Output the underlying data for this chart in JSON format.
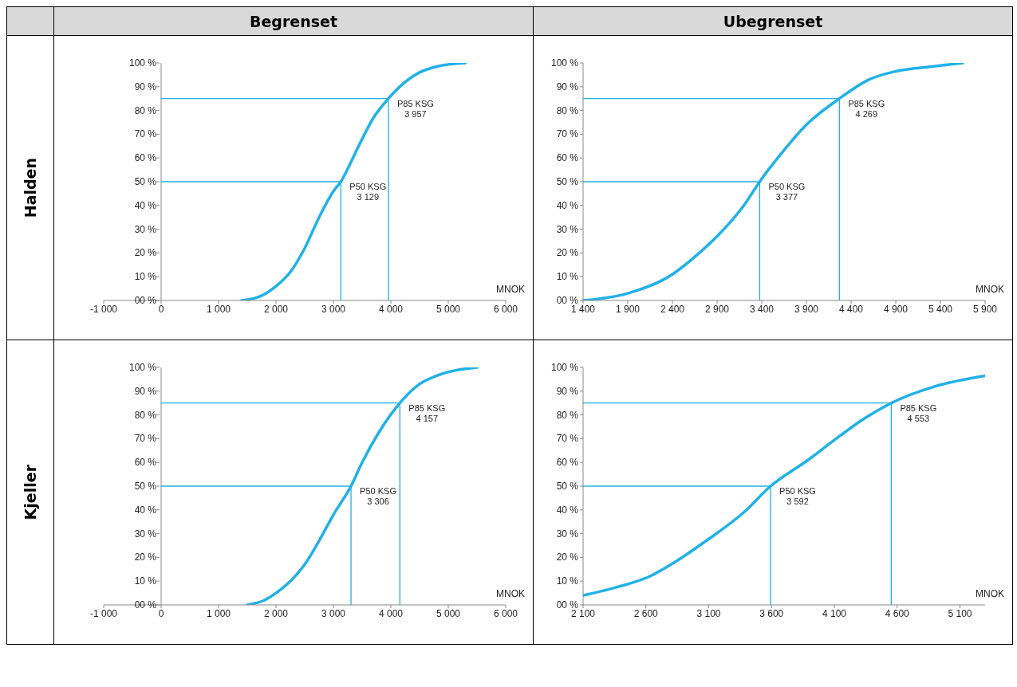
{
  "chart_data": [
    {
      "type": "line",
      "title": "Begrenset",
      "ylabel": "Halden",
      "xlabel": "MNOK",
      "xlim": [
        -1000,
        6000
      ],
      "xticks": [
        {
          "value": -1000,
          "label": "-1 000"
        },
        0,
        {
          "value": 1000,
          "label": "1 000"
        },
        {
          "value": 2000,
          "label": "2 000"
        },
        {
          "value": 3000,
          "label": "3 000"
        },
        {
          "value": 4000,
          "label": "4 000"
        },
        {
          "value": 5000,
          "label": "5 000"
        },
        {
          "value": 6000,
          "label": "6 000"
        }
      ],
      "ylim": [
        0,
        100
      ],
      "yticks": [
        {
          "value": 0,
          "label": "00 %"
        },
        {
          "value": 10,
          "label": "10 %"
        },
        {
          "value": 20,
          "label": "20 %"
        },
        {
          "value": 30,
          "label": "30 %"
        },
        {
          "value": 40,
          "label": "40 %"
        },
        {
          "value": 50,
          "label": "50 %"
        },
        {
          "value": 60,
          "label": "60 %"
        },
        {
          "value": 70,
          "label": "70 %"
        },
        {
          "value": 80,
          "label": "80 %"
        },
        {
          "value": 90,
          "label": "90 %"
        },
        {
          "value": 100,
          "label": "100 %"
        }
      ],
      "grid": false,
      "marker": "none",
      "series": [
        {
          "color": "#1fb1e9",
          "x": [
            1400,
            1750,
            2000,
            2250,
            2500,
            2750,
            3000,
            3129,
            3300,
            3500,
            3700,
            3957,
            4200,
            4500,
            4800,
            5300
          ],
          "values": [
            0,
            2,
            6,
            12,
            22,
            35,
            46,
            50,
            58,
            68,
            77,
            85,
            91,
            96,
            98.5,
            100
          ]
        },
        {
          "color": "#1fb1e9",
          "x": [
            0,
            3957,
            3957
          ],
          "values": [
            85,
            85,
            0
          ]
        },
        {
          "color": "#1fb1e9",
          "x": [
            0,
            3129,
            3129
          ],
          "values": [
            50,
            50,
            0
          ]
        }
      ],
      "annotations": [
        {
          "text": "P85 KSG\n3 957",
          "x": 3957,
          "y": 85
        },
        {
          "text": "P50 KSG\n3 129",
          "x": 3129,
          "y": 50
        }
      ]
    },
    {
      "type": "line",
      "title": "Ubegrenset",
      "xlabel": "MNOK",
      "xlim": [
        1400,
        5900
      ],
      "xticks": [
        {
          "value": 1400,
          "label": "1 400"
        },
        {
          "value": 1900,
          "label": "1 900"
        },
        {
          "value": 2400,
          "label": "2 400"
        },
        {
          "value": 2900,
          "label": "2 900"
        },
        {
          "value": 3400,
          "label": "3 400"
        },
        {
          "value": 3900,
          "label": "3 900"
        },
        {
          "value": 4400,
          "label": "4 400"
        },
        {
          "value": 4900,
          "label": "4 900"
        },
        {
          "value": 5400,
          "label": "5 400"
        },
        {
          "value": 5900,
          "label": "5 900"
        }
      ],
      "ylim": [
        0,
        100
      ],
      "yticks": [
        {
          "value": 0,
          "label": "00 %"
        },
        {
          "value": 10,
          "label": "10 %"
        },
        {
          "value": 20,
          "label": "20 %"
        },
        {
          "value": 30,
          "label": "30 %"
        },
        {
          "value": 40,
          "label": "40 %"
        },
        {
          "value": 50,
          "label": "50 %"
        },
        {
          "value": 60,
          "label": "60 %"
        },
        {
          "value": 70,
          "label": "70 %"
        },
        {
          "value": 80,
          "label": "80 %"
        },
        {
          "value": 90,
          "label": "90 %"
        },
        {
          "value": 100,
          "label": "100 %"
        }
      ],
      "grid": false,
      "marker": "none",
      "series": [
        {
          "color": "#1fb1e9",
          "x": [
            1400,
            1900,
            2400,
            2700,
            2900,
            3200,
            3377,
            3600,
            3900,
            4269,
            4600,
            4900,
            5300,
            5650
          ],
          "values": [
            0,
            3,
            11,
            20,
            27,
            40,
            50,
            61,
            74,
            85,
            93,
            96.5,
            98.5,
            100
          ]
        },
        {
          "color": "#1fb1e9",
          "x": [
            1400,
            4269,
            4269
          ],
          "values": [
            85,
            85,
            0
          ]
        },
        {
          "color": "#1fb1e9",
          "x": [
            1400,
            3377,
            3377
          ],
          "values": [
            50,
            50,
            0
          ]
        }
      ],
      "annotations": [
        {
          "text": "P85 KSG\n4 269",
          "x": 4269,
          "y": 85
        },
        {
          "text": "P50 KSG\n3 377",
          "x": 3377,
          "y": 50
        }
      ]
    },
    {
      "type": "line",
      "ylabel": "Kjeller",
      "xlabel": "MNOK",
      "xlim": [
        -1000,
        6000
      ],
      "xticks": [
        {
          "value": -1000,
          "label": "-1 000"
        },
        0,
        {
          "value": 1000,
          "label": "1 000"
        },
        {
          "value": 2000,
          "label": "2 000"
        },
        {
          "value": 3000,
          "label": "3 000"
        },
        {
          "value": 4000,
          "label": "4 000"
        },
        {
          "value": 5000,
          "label": "5 000"
        },
        {
          "value": 6000,
          "label": "6 000"
        }
      ],
      "ylim": [
        0,
        100
      ],
      "yticks": [
        {
          "value": 0,
          "label": "00 %"
        },
        {
          "value": 10,
          "label": "10 %"
        },
        {
          "value": 20,
          "label": "20 %"
        },
        {
          "value": 30,
          "label": "30 %"
        },
        {
          "value": 40,
          "label": "40 %"
        },
        {
          "value": 50,
          "label": "50 %"
        },
        {
          "value": 60,
          "label": "60 %"
        },
        {
          "value": 70,
          "label": "70 %"
        },
        {
          "value": 80,
          "label": "80 %"
        },
        {
          "value": 90,
          "label": "90 %"
        },
        {
          "value": 100,
          "label": "100 %"
        }
      ],
      "grid": false,
      "marker": "none",
      "series": [
        {
          "color": "#1fb1e9",
          "x": [
            1500,
            1800,
            2000,
            2250,
            2500,
            2750,
            3000,
            3306,
            3500,
            3800,
            4157,
            4500,
            4800,
            5500
          ],
          "values": [
            0,
            2,
            5,
            10,
            17,
            27,
            38,
            50,
            60,
            73,
            85,
            93,
            96.5,
            100
          ]
        },
        {
          "color": "#1fb1e9",
          "x": [
            0,
            4157,
            4157
          ],
          "values": [
            85,
            85,
            0
          ]
        },
        {
          "color": "#1fb1e9",
          "x": [
            0,
            3306,
            3306
          ],
          "values": [
            50,
            50,
            0
          ]
        }
      ],
      "annotations": [
        {
          "text": "P85 KSG\n4 157",
          "x": 4157,
          "y": 85
        },
        {
          "text": "P50 KSG\n3 306",
          "x": 3306,
          "y": 50
        }
      ]
    },
    {
      "type": "line",
      "xlabel": "MNOK",
      "xlim": [
        2100,
        5300
      ],
      "xticks": [
        {
          "value": 2100,
          "label": "2 100"
        },
        {
          "value": 2600,
          "label": "2 600"
        },
        {
          "value": 3100,
          "label": "3 100"
        },
        {
          "value": 3600,
          "label": "3 600"
        },
        {
          "value": 4100,
          "label": "4 100"
        },
        {
          "value": 4600,
          "label": "4 600"
        },
        {
          "value": 5100,
          "label": "5 100"
        }
      ],
      "ylim": [
        0,
        100
      ],
      "yticks": [
        {
          "value": 0,
          "label": "00 %"
        },
        {
          "value": 10,
          "label": "10 %"
        },
        {
          "value": 20,
          "label": "20 %"
        },
        {
          "value": 30,
          "label": "30 %"
        },
        {
          "value": 40,
          "label": "40 %"
        },
        {
          "value": 50,
          "label": "50 %"
        },
        {
          "value": 60,
          "label": "60 %"
        },
        {
          "value": 70,
          "label": "70 %"
        },
        {
          "value": 80,
          "label": "80 %"
        },
        {
          "value": 90,
          "label": "90 %"
        },
        {
          "value": 100,
          "label": "100 %"
        }
      ],
      "grid": false,
      "marker": "none",
      "series": [
        {
          "color": "#1fb1e9",
          "x": [
            2100,
            2370,
            2630,
            2830,
            3080,
            3380,
            3592,
            3890,
            4140,
            4340,
            4553,
            4900,
            5300
          ],
          "values": [
            4,
            7.5,
            12,
            18,
            27,
            39,
            50,
            61,
            71,
            78.5,
            85,
            92,
            96.5
          ]
        },
        {
          "color": "#1fb1e9",
          "x": [
            2100,
            4553,
            4553
          ],
          "values": [
            85,
            85,
            0
          ]
        },
        {
          "color": "#1fb1e9",
          "x": [
            2100,
            3592,
            3592
          ],
          "values": [
            50,
            50,
            0
          ]
        }
      ],
      "annotations": [
        {
          "text": "P85 KSG\n4 553",
          "x": 4553,
          "y": 85
        },
        {
          "text": "P50 KSG\n3 592",
          "x": 3592,
          "y": 50
        }
      ]
    }
  ]
}
